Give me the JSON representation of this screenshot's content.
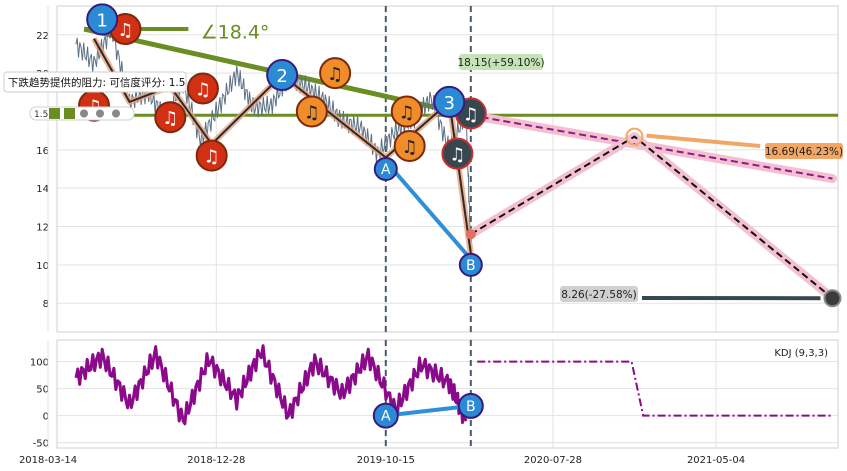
{
  "chart_data": [
    {
      "type": "line",
      "ylim": [
        6.5,
        23.5
      ],
      "y_ticks": [
        8,
        10,
        12,
        14,
        16,
        20,
        22
      ],
      "x_ticks": [
        "2018-03-14",
        "2018-12-28",
        "2019-10-15",
        "2020-07-28",
        "2021-05-04"
      ],
      "vlines": [
        "2019-10-15",
        "2020-03-09"
      ],
      "resistance_level": 17.8,
      "resistance_label": "下跌趋势提供的阻力: 可信度评分: 1.5",
      "badge_row_label": "1.5",
      "angle_label": "∠18.4°",
      "series": [
        {
          "x": [
            "2018-05-01",
            "2018-06-01",
            "2018-07-01",
            "2018-08-01",
            "2018-09-01",
            "2018-10-01",
            "2018-11-01",
            "2018-12-01",
            "2019-01-01",
            "2019-02-01",
            "2019-03-01",
            "2019-04-01",
            "2019-05-01",
            "2019-06-01",
            "2019-07-01",
            "2019-08-01",
            "2019-09-01",
            "2019-10-01",
            "2019-11-01",
            "2019-12-01",
            "2020-01-01",
            "2020-02-01",
            "2020-03-01",
            "2020-03-09"
          ],
          "values": [
            21.5,
            20.5,
            22.3,
            18.5,
            19.0,
            17.7,
            19.5,
            16.5,
            18.2,
            20.0,
            18.2,
            18.3,
            19.8,
            19.3,
            18.6,
            17.5,
            17.2,
            15.8,
            17.0,
            17.6,
            18.7,
            16.0,
            17.9,
            10.6
          ]
        }
      ],
      "wave_points": [
        {
          "label": "1",
          "x": "2018-06-15",
          "y": 22.8
        },
        {
          "label": "2",
          "x": "2019-04-20",
          "y": 19.9
        },
        {
          "label": "3",
          "x": "2020-02-01",
          "y": 18.5
        },
        {
          "label": "A",
          "x": "2019-10-15",
          "y": 15.0
        },
        {
          "label": "B",
          "x": "2020-03-09",
          "y": 10.0
        }
      ],
      "signal_markers": [
        {
          "x": "2018-06-01",
          "y": 18.3,
          "color": "#d32f12"
        },
        {
          "x": "2018-07-25",
          "y": 22.3,
          "color": "#d32f12"
        },
        {
          "x": "2018-10-10",
          "y": 17.7,
          "color": "#d32f12"
        },
        {
          "x": "2018-12-05",
          "y": 19.2,
          "color": "#d32f12"
        },
        {
          "x": "2018-12-20",
          "y": 15.7,
          "color": "#d32f12"
        },
        {
          "x": "2019-06-10",
          "y": 18.0,
          "color": "#f08c2a"
        },
        {
          "x": "2019-07-20",
          "y": 20.0,
          "color": "#f08c2a"
        },
        {
          "x": "2019-11-20",
          "y": 18.0,
          "color": "#f08c2a"
        },
        {
          "x": "2019-11-25",
          "y": 16.2,
          "color": "#f08c2a"
        },
        {
          "x": "2020-02-15",
          "y": 15.8,
          "color": "#37474f"
        },
        {
          "x": "2020-03-09",
          "y": 17.9,
          "color": "#37474f"
        }
      ],
      "forecast_paths": [
        {
          "from": [
            "2020-03-09",
            17.8
          ],
          "to": [
            "2021-11-20",
            14.5
          ],
          "color": "#8b1a8b"
        },
        {
          "from": [
            "2020-03-09",
            11.6
          ],
          "via": [
            "2020-12-15",
            16.69
          ],
          "to": [
            "2021-11-20",
            8.26
          ],
          "color": "#111111"
        }
      ],
      "annotations": [
        {
          "text": "18.15(+59.10%)",
          "bg": "#c5e3b7"
        },
        {
          "text": "16.69(46.23%)",
          "bg": "#f2a766"
        },
        {
          "text": "8.26(-27.58%)",
          "bg": "#d0d0d0"
        }
      ]
    },
    {
      "type": "line",
      "title": "KDJ (9,3,3)",
      "ylim": [
        -60,
        140
      ],
      "y_ticks": [
        -50,
        0,
        50,
        100
      ],
      "x_ticks": [
        "2018-03-14",
        "2018-12-28",
        "2019-10-15",
        "2020-07-28",
        "2021-05-04"
      ],
      "series": [
        {
          "x": [
            "2018-05-01",
            "2018-06-15",
            "2018-08-01",
            "2018-09-15",
            "2018-11-01",
            "2018-12-15",
            "2019-02-01",
            "2019-03-15",
            "2019-05-01",
            "2019-06-15",
            "2019-08-01",
            "2019-09-15",
            "2019-11-01",
            "2019-12-15",
            "2020-02-01",
            "2020-03-01"
          ],
          "values": [
            70,
            110,
            20,
            115,
            -10,
            105,
            30,
            120,
            0,
            100,
            40,
            110,
            10,
            95,
            60,
            -10
          ]
        },
        {
          "x": [
            "2020-03-20",
            "2020-12-10",
            "2020-12-30",
            "2021-11-20"
          ],
          "values": [
            100,
            100,
            0,
            0
          ]
        }
      ],
      "ab_points": [
        {
          "label": "A",
          "x": "2019-10-15",
          "y": 0
        },
        {
          "label": "B",
          "x": "2020-03-09",
          "y": 18
        }
      ]
    }
  ]
}
